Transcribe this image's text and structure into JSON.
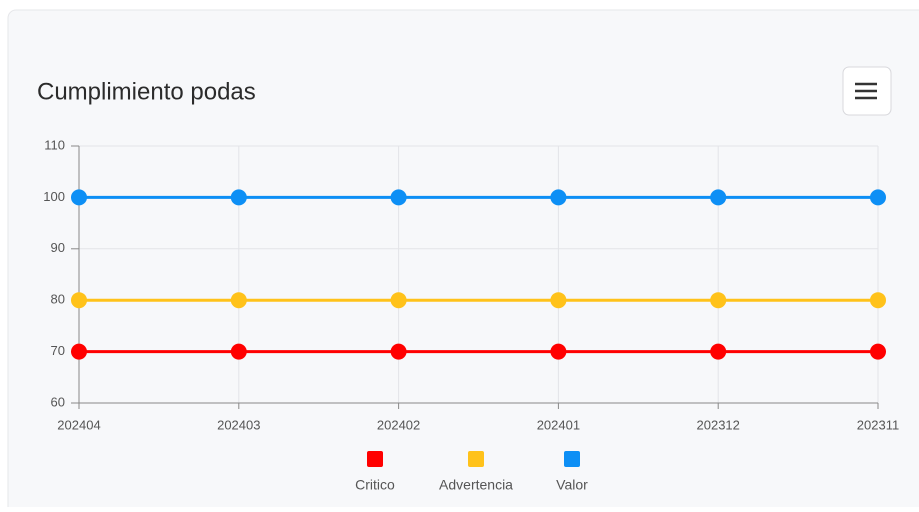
{
  "chart_data": {
    "type": "line",
    "title": "Cumplimiento podas",
    "categories": [
      "202404",
      "202403",
      "202402",
      "202401",
      "202312",
      "202311"
    ],
    "series": [
      {
        "name": "Critico",
        "color": "#ff0000",
        "values": [
          70,
          70,
          70,
          70,
          70,
          70
        ]
      },
      {
        "name": "Advertencia",
        "color": "#ffc21a",
        "values": [
          80,
          80,
          80,
          80,
          80,
          80
        ]
      },
      {
        "name": "Valor",
        "color": "#0d8ff5",
        "values": [
          100,
          100,
          100,
          100,
          100,
          100
        ]
      }
    ],
    "ylim": [
      60,
      110
    ],
    "yticks": [
      60,
      70,
      80,
      90,
      100,
      110
    ],
    "grid": true,
    "legend": "bottom"
  }
}
